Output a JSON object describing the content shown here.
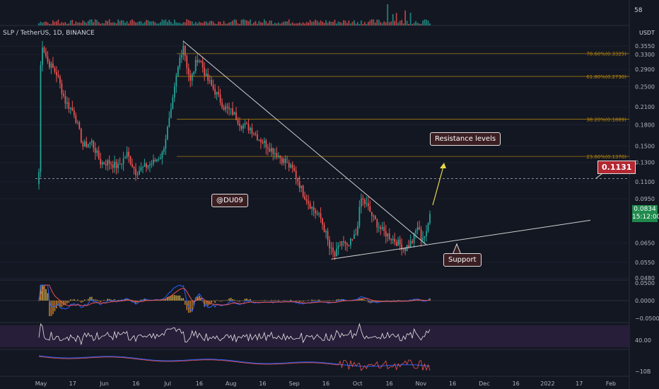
{
  "header": {
    "symbol_title": "SLP / TetherUS, 1D, BINANCE",
    "volume_label": "58",
    "axis_unit": "USDT"
  },
  "annotations": {
    "resistance": "Resistance levels",
    "username": "@DU09",
    "support": "Support"
  },
  "level_badge": "0.1131",
  "price_badge": {
    "price": "0.0834",
    "countdown": "15:12:00"
  },
  "colors": {
    "background": "#131722",
    "up": "#26a69a",
    "down": "#ef5350",
    "fib": "#b8860b",
    "trend": "#cfcfcf",
    "arrow": "#e6d84b",
    "rsi": "#e6e6e6",
    "rsi_band": "#2a1f3d",
    "macd": "#2962ff",
    "signal": "#ef5350"
  },
  "chart_data": {
    "type": "candlestick",
    "price_axis": {
      "scale": "log",
      "ticks": [
        "0.3550",
        "0.3300",
        "0.2900",
        "0.2500",
        "0.2100",
        "0.1800",
        "0.1500",
        "0.1300",
        "0.1100",
        "0.0950",
        "0.0650",
        "0.0550",
        "0.0480"
      ],
      "ticks_v": [
        0.355,
        0.33,
        0.29,
        0.25,
        0.21,
        0.18,
        0.15,
        0.13,
        0.11,
        0.095,
        0.065,
        0.055,
        0.048
      ]
    },
    "time_axis": [
      "May",
      "17",
      "Jun",
      "16",
      "Jul",
      "16",
      "Aug",
      "16",
      "Sep",
      "16",
      "Oct",
      "16",
      "Nov",
      "16",
      "Dec",
      "16",
      "2022",
      "17",
      "Feb"
    ],
    "fib_levels": [
      {
        "label": "78.60%(0.3325)",
        "value": 0.3325
      },
      {
        "label": "61.80%(0.2730)",
        "value": 0.273
      },
      {
        "label": "38.20%(0.1889)",
        "value": 0.1889
      },
      {
        "label": "23.60%(0.1370)",
        "value": 0.137
      }
    ],
    "dashed_level": 0.1131,
    "last_price": 0.0834,
    "macd_axis": [
      "0.0500",
      "0.0000",
      "−0.0500"
    ],
    "rsi_axis": [
      "40.00"
    ],
    "lower_axis": [
      "−10B"
    ],
    "anchors": [
      [
        0.0,
        0.12
      ],
      [
        1,
        0.3
      ],
      [
        2,
        0.36
      ],
      [
        5,
        0.31
      ],
      [
        10,
        0.28
      ],
      [
        15,
        0.22
      ],
      [
        20,
        0.2
      ],
      [
        25,
        0.15
      ],
      [
        30,
        0.155
      ],
      [
        35,
        0.13
      ],
      [
        40,
        0.13
      ],
      [
        45,
        0.125
      ],
      [
        50,
        0.14
      ],
      [
        55,
        0.12
      ],
      [
        60,
        0.125
      ],
      [
        65,
        0.13
      ],
      [
        70,
        0.14
      ],
      [
        75,
        0.2
      ],
      [
        78,
        0.27
      ],
      [
        80,
        0.32
      ],
      [
        82,
        0.36
      ],
      [
        84,
        0.3
      ],
      [
        86,
        0.26
      ],
      [
        88,
        0.29
      ],
      [
        90,
        0.32
      ],
      [
        92,
        0.31
      ],
      [
        95,
        0.27
      ],
      [
        100,
        0.24
      ],
      [
        105,
        0.21
      ],
      [
        110,
        0.2
      ],
      [
        115,
        0.18
      ],
      [
        120,
        0.175
      ],
      [
        125,
        0.16
      ],
      [
        130,
        0.15
      ],
      [
        135,
        0.14
      ],
      [
        140,
        0.13
      ],
      [
        145,
        0.12
      ],
      [
        150,
        0.1
      ],
      [
        155,
        0.088
      ],
      [
        160,
        0.08
      ],
      [
        163,
        0.07
      ],
      [
        165,
        0.062
      ],
      [
        168,
        0.058
      ],
      [
        172,
        0.066
      ],
      [
        175,
        0.062
      ],
      [
        180,
        0.07
      ],
      [
        183,
        0.095
      ],
      [
        186,
        0.09
      ],
      [
        190,
        0.08
      ],
      [
        195,
        0.072
      ],
      [
        200,
        0.068
      ],
      [
        205,
        0.064
      ],
      [
        208,
        0.062
      ],
      [
        212,
        0.066
      ],
      [
        215,
        0.075
      ],
      [
        217,
        0.068
      ],
      [
        220,
        0.07
      ],
      [
        222,
        0.084
      ]
    ]
  }
}
